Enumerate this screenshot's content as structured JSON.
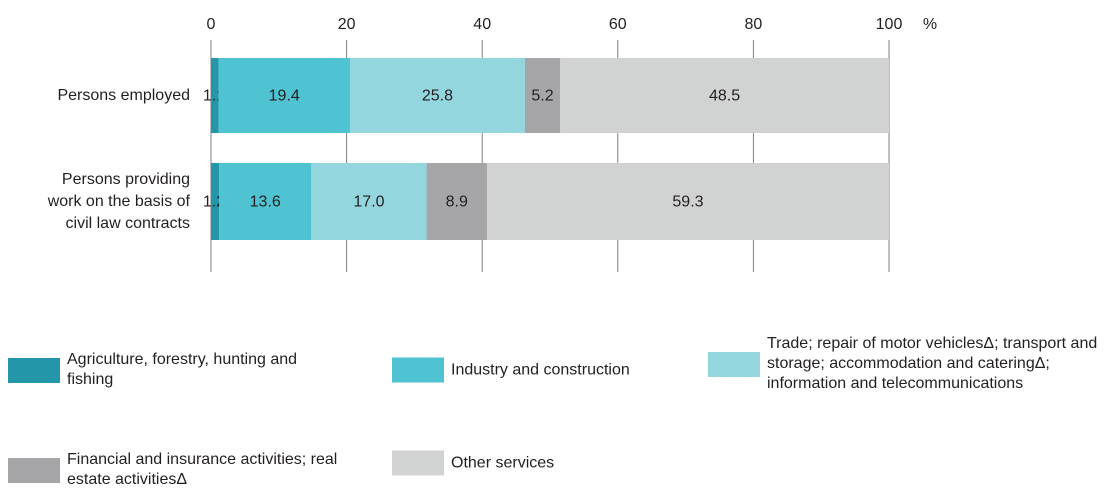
{
  "chart_data": {
    "type": "bar",
    "orientation": "horizontal",
    "stacked": true,
    "xlabel": "%",
    "categories": [
      "Persons employed",
      "Persons providing work on the basis of civil law contracts"
    ],
    "series": [
      {
        "name": "Agriculture, forestry, hunting and fishing",
        "color": "#2496a9",
        "values": [
          1.1,
          1.2
        ]
      },
      {
        "name": "Industry and construction",
        "color": "#4fc3d1",
        "values": [
          19.4,
          13.6
        ]
      },
      {
        "name": "Trade; repair of motor vehiclesΔ; transport and storage; accommodation and cateringΔ; information and telecommunications",
        "color": "#93d6de",
        "values": [
          25.8,
          17.0
        ],
        "value_labels": [
          "25.8",
          "17.0"
        ]
      },
      {
        "name": "Financial and insurance activities; real estate activitiesΔ",
        "color": "#a6a6a8",
        "values": [
          5.2,
          8.9
        ]
      },
      {
        "name": "Other services",
        "color": "#d1d2d2",
        "values": [
          48.5,
          59.3
        ]
      }
    ],
    "xlim": [
      0,
      100
    ],
    "xticks": [
      0,
      20,
      40,
      60,
      80,
      100
    ],
    "grid": true
  }
}
